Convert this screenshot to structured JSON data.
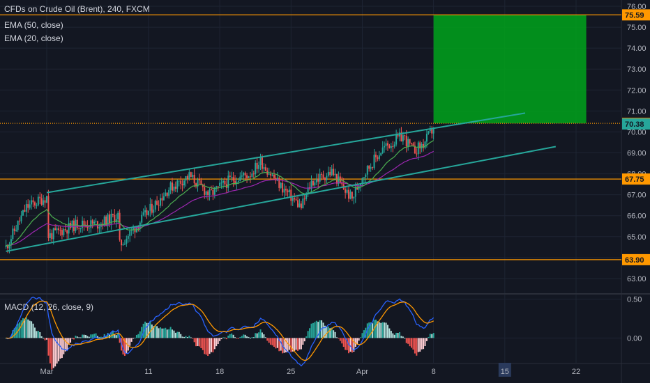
{
  "chart_data": [
    {
      "type": "candlestick",
      "title": "CFDs on Crude Oil (Brent), 240, FXCM",
      "indicators": [
        "EMA (50, close)",
        "EMA (20, close)"
      ],
      "ylim": [
        62.3,
        76.3
      ],
      "yticks": [
        63.0,
        64.0,
        65.0,
        66.0,
        67.0,
        68.0,
        69.0,
        70.0,
        71.0,
        72.0,
        73.0,
        74.0,
        75.0,
        76.0
      ],
      "ytick_labels": [
        "63.00",
        "64.00",
        "65.00",
        "66.00",
        "67.00",
        "68.00",
        "69.00",
        "70.00",
        "71.00",
        "72.00",
        "73.00",
        "74.00",
        "75.00",
        "76.00"
      ],
      "x_labels": [
        "Mar",
        "11",
        "18",
        "25",
        "Apr",
        "8",
        "15",
        "22"
      ],
      "x_label_dates": [
        "2019-03-01",
        "2019-03-11",
        "2019-03-18",
        "2019-03-25",
        "2019-04-01",
        "2019-04-08",
        "2019-04-15",
        "2019-04-22"
      ],
      "highlighted_x_label": "15",
      "price_start": 64.5,
      "price_waypoints": [
        [
          "2019-02-25",
          64.5
        ],
        [
          "2019-02-27",
          66.4
        ],
        [
          "2019-03-01",
          66.9
        ],
        [
          "2019-03-01",
          65.0
        ],
        [
          "2019-03-04",
          65.6
        ],
        [
          "2019-03-06",
          65.6
        ],
        [
          "2019-03-08",
          66.0
        ],
        [
          "2019-03-08",
          64.5
        ],
        [
          "2019-03-11",
          66.2
        ],
        [
          "2019-03-13",
          67.3
        ],
        [
          "2019-03-15",
          67.9
        ],
        [
          "2019-03-17",
          67.0
        ],
        [
          "2019-03-19",
          67.7
        ],
        [
          "2019-03-21",
          68.0
        ],
        [
          "2019-03-22",
          68.6
        ],
        [
          "2019-03-24",
          67.4
        ],
        [
          "2019-03-26",
          66.4
        ],
        [
          "2019-03-27",
          67.6
        ],
        [
          "2019-03-29",
          68.1
        ],
        [
          "2019-03-30",
          67.4
        ],
        [
          "2019-03-31",
          66.8
        ],
        [
          "2019-04-01",
          67.9
        ],
        [
          "2019-04-03",
          69.2
        ],
        [
          "2019-04-05",
          69.8
        ],
        [
          "2019-04-06",
          69.1
        ],
        [
          "2019-04-07",
          69.4
        ],
        [
          "2019-04-08",
          70.2
        ]
      ],
      "lines": [
        {
          "name": "channel-upper",
          "color": "#26a69a",
          "from": [
            "2019-03-01",
            67.1
          ],
          "to": [
            "2019-04-17",
            70.9
          ]
        },
        {
          "name": "channel-lower",
          "color": "#26a69a",
          "from": [
            "2019-02-25",
            64.3
          ],
          "to": [
            "2019-04-20",
            69.3
          ]
        }
      ],
      "horizontal_levels": [
        {
          "value": 75.59,
          "label": "75.59",
          "color": "#ff9800"
        },
        {
          "value": 70.41,
          "label": "70.41",
          "color": "#ff9800",
          "style": "dotted"
        },
        {
          "value": 67.75,
          "label": "67.75",
          "color": "#ff9800"
        },
        {
          "value": 63.9,
          "label": "63.90",
          "color": "#ff9800"
        }
      ],
      "last_price": {
        "value": 70.38,
        "label": "70.38",
        "color": "#26a69a"
      },
      "target_zone": {
        "from_date": "2019-04-08",
        "to_date": "2019-04-23",
        "low": 70.41,
        "high": 75.59,
        "color": "#00a31b"
      },
      "colors": {
        "up": "#26a69a",
        "down": "#ef5350",
        "ema50": "#9c27b0",
        "ema20": "#4caf50",
        "channel": "#26a69a",
        "grid": "#1e2433",
        "background": "#131722"
      }
    },
    {
      "type": "macd",
      "title": "MACD (12, 26, close, 9)",
      "ylim": [
        -0.32,
        0.56
      ],
      "yticks": [
        0.0,
        0.5
      ],
      "ytick_labels": [
        "0.00",
        "0.50"
      ],
      "series": [
        {
          "name": "MACD",
          "color": "#2962ff"
        },
        {
          "name": "Signal",
          "color": "#ff9800"
        }
      ],
      "histogram_colors": {
        "up_strong": "#26a69a",
        "up_weak": "#b2dfdb",
        "down_strong": "#ef5350",
        "down_weak": "#ffcdd2"
      }
    }
  ]
}
